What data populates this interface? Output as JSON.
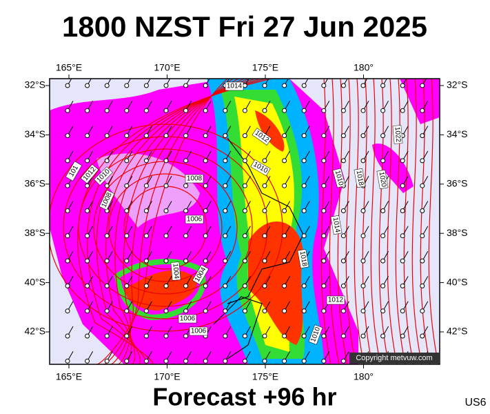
{
  "header": {
    "title": "1800 NZST Fri 27 Jun 2025"
  },
  "map": {
    "lon_labels": [
      "165°E",
      "170°E",
      "175°E",
      "180°"
    ],
    "lat_labels": [
      "32°S",
      "34°S",
      "36°S",
      "38°S",
      "40°S",
      "42°S"
    ],
    "isobar_labels": [
      "1014",
      "1012",
      "1010",
      "1008",
      "1006",
      "101",
      "1012",
      "1010",
      "1008",
      "1004",
      "1004",
      "1006",
      "1006",
      "1010",
      "1018",
      "1020",
      "1022",
      "1014",
      "1018",
      "1012",
      "1010"
    ],
    "copyright": "Copyright metvuw.com"
  },
  "footer": {
    "forecast": "Forecast +96 hr",
    "code": "US6"
  }
}
